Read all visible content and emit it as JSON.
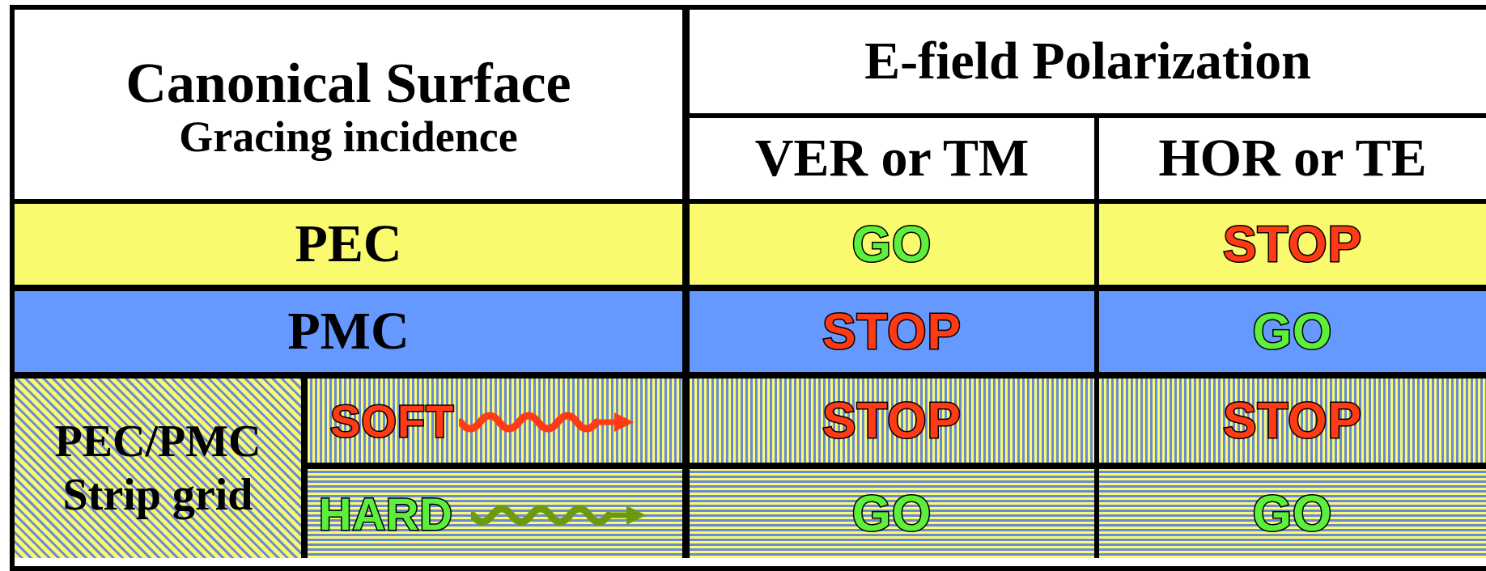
{
  "header": {
    "left_title": "Canonical Surface",
    "left_subtitle": "Gracing incidence",
    "right_title": "E-field Polarization",
    "col_ver": "VER or TM",
    "col_hor": "HOR or TE"
  },
  "rows": [
    {
      "label": "PEC",
      "ver": "GO",
      "hor": "STOP"
    },
    {
      "label": "PMC",
      "ver": "STOP",
      "hor": "GO"
    }
  ],
  "strip": {
    "label_line1": "PEC/PMC",
    "label_line2": "Strip grid",
    "soft": {
      "label": "SOFT",
      "ver": "STOP",
      "hor": "STOP",
      "arrow_color": "#ff3a14"
    },
    "hard": {
      "label": "HARD",
      "ver": "GO",
      "hor": "GO",
      "arrow_color": "#6b9a10"
    }
  },
  "colors": {
    "go": "#5cf03c",
    "stop": "#ff3a14",
    "yellow": "#fafa6e",
    "blue": "#6699ff"
  }
}
